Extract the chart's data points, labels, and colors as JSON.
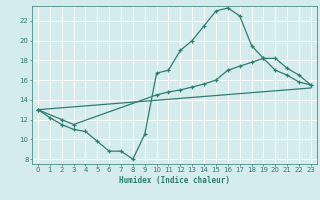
{
  "xlabel": "Humidex (Indice chaleur)",
  "bg_color": "#d4ecee",
  "grid_color": "#ffffff",
  "line_color": "#2e7d72",
  "xlim": [
    -0.5,
    23.5
  ],
  "ylim": [
    7.5,
    23.5
  ],
  "xticks": [
    0,
    1,
    2,
    3,
    4,
    5,
    6,
    7,
    8,
    9,
    10,
    11,
    12,
    13,
    14,
    15,
    16,
    17,
    18,
    19,
    20,
    21,
    22,
    23
  ],
  "yticks": [
    8,
    10,
    12,
    14,
    16,
    18,
    20,
    22
  ],
  "line1_x": [
    0,
    1,
    2,
    3,
    4,
    5,
    6,
    7,
    8,
    9,
    10,
    11,
    12,
    13,
    14,
    15,
    16,
    17,
    18,
    19,
    20,
    21,
    22,
    23
  ],
  "line1_y": [
    13.0,
    12.2,
    11.5,
    11.0,
    10.8,
    9.8,
    8.8,
    8.8,
    8.0,
    10.5,
    16.7,
    17.0,
    19.0,
    20.0,
    21.5,
    23.0,
    23.3,
    22.5,
    19.5,
    18.2,
    17.0,
    16.5,
    15.8,
    15.5
  ],
  "line2_x": [
    0,
    2,
    3,
    10,
    11,
    12,
    13,
    14,
    15,
    16,
    17,
    18,
    19,
    20,
    21,
    22,
    23
  ],
  "line2_y": [
    13.0,
    12.0,
    11.5,
    14.5,
    14.8,
    15.0,
    15.3,
    15.6,
    16.0,
    17.0,
    17.4,
    17.8,
    18.2,
    18.2,
    17.2,
    16.5,
    15.5
  ],
  "line3_x": [
    0,
    23
  ],
  "line3_y": [
    13.0,
    15.2
  ]
}
